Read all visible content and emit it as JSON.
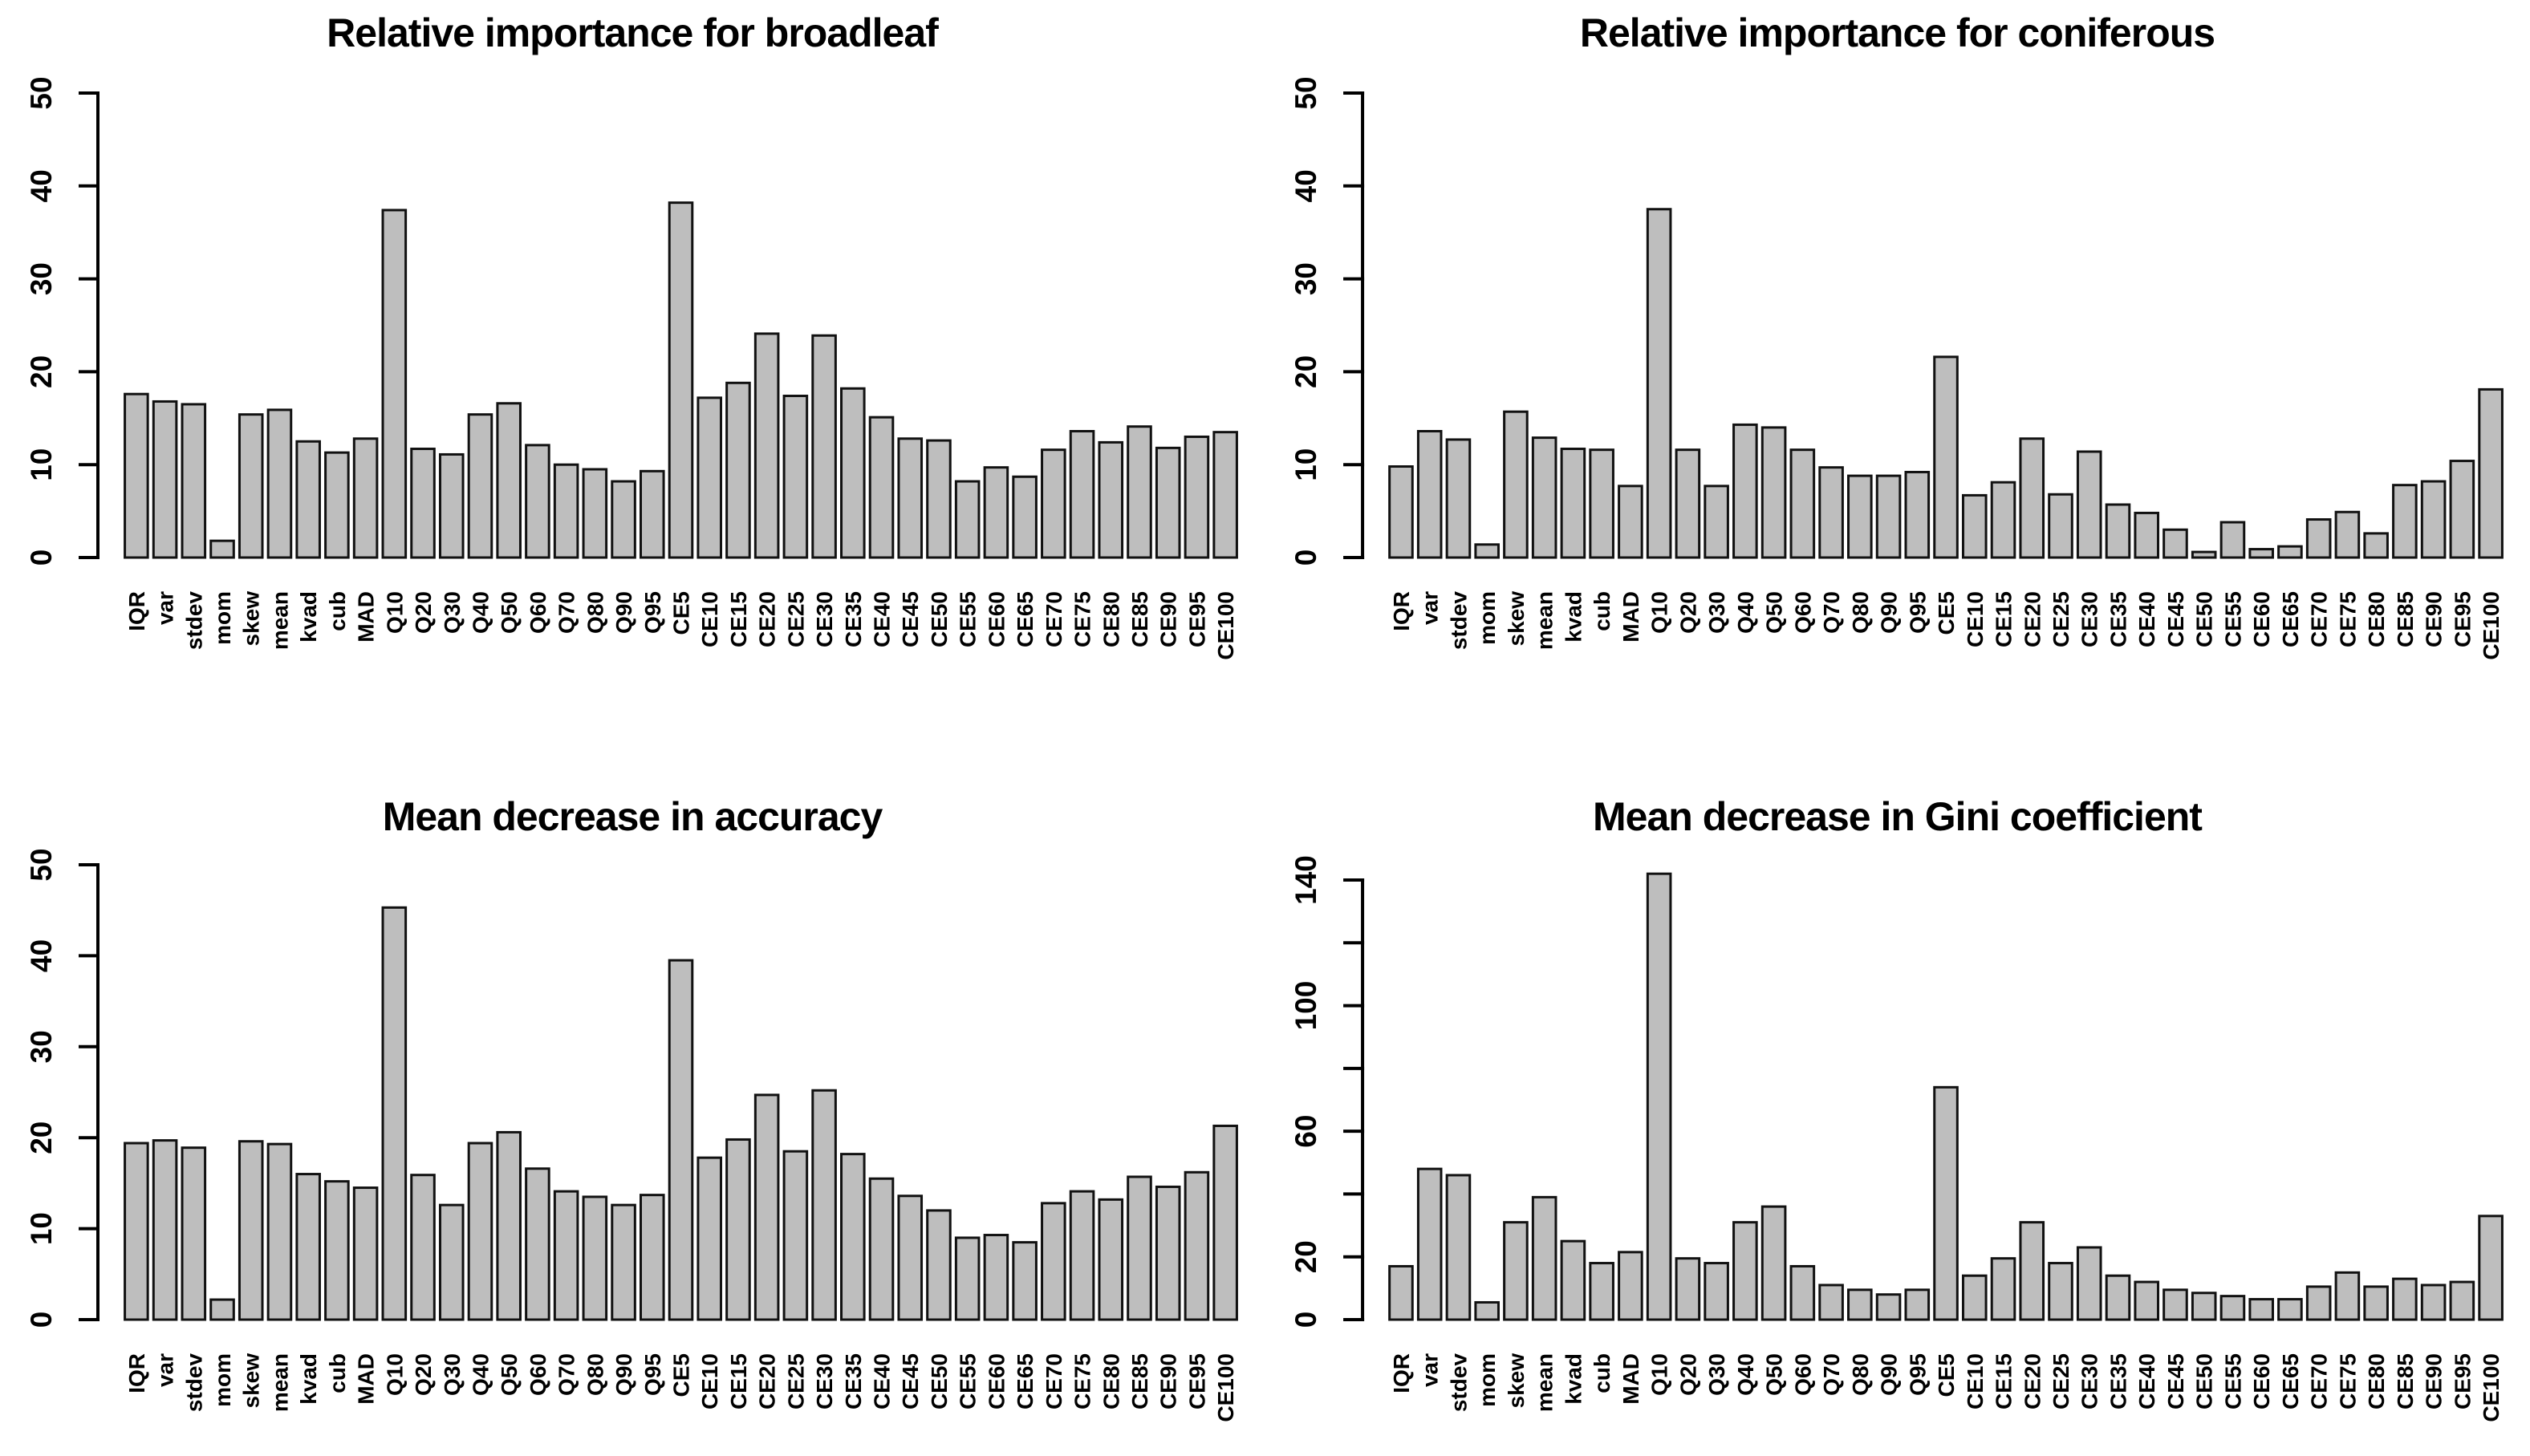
{
  "figure": {
    "background": "#ffffff",
    "text_color": "#000000",
    "bar_fill": "#bebebe",
    "bar_border": "#111111"
  },
  "chart_data": [
    {
      "type": "bar",
      "title": "Relative importance for broadleaf",
      "xlabel": "",
      "ylabel": "",
      "ylim": [
        0,
        50
      ],
      "yticks": [
        0,
        10,
        20,
        30,
        40,
        50
      ],
      "ytick_labels": [
        "0",
        "10",
        "20",
        "30",
        "40",
        "50"
      ],
      "grid": false,
      "legend": "none",
      "bar_color": "#bebebe",
      "categories": [
        "IQR",
        "var",
        "stdev",
        "mom",
        "skew",
        "mean",
        "kvad",
        "cub",
        "MAD",
        "Q10",
        "Q20",
        "Q30",
        "Q40",
        "Q50",
        "Q60",
        "Q70",
        "Q80",
        "Q90",
        "Q95",
        "CE5",
        "CE10",
        "CE15",
        "CE20",
        "CE25",
        "CE30",
        "CE35",
        "CE40",
        "CE45",
        "CE50",
        "CE55",
        "CE60",
        "CE65",
        "CE70",
        "CE75",
        "CE80",
        "CE85",
        "CE90",
        "CE95",
        "CE100"
      ],
      "values": [
        17.6,
        16.8,
        16.5,
        1.8,
        15.4,
        15.9,
        12.5,
        11.3,
        12.8,
        37.4,
        11.7,
        11.1,
        15.4,
        16.6,
        12.1,
        10.0,
        9.5,
        8.2,
        9.3,
        38.2,
        17.2,
        18.8,
        24.1,
        17.4,
        23.9,
        18.2,
        15.1,
        12.8,
        12.6,
        8.2,
        9.7,
        8.7,
        11.6,
        13.6,
        12.4,
        14.1,
        11.8,
        13.0,
        13.5
      ]
    },
    {
      "type": "bar",
      "title": "Relative importance for coniferous",
      "xlabel": "",
      "ylabel": "",
      "ylim": [
        0,
        50
      ],
      "yticks": [
        0,
        10,
        20,
        30,
        40,
        50
      ],
      "ytick_labels": [
        "0",
        "10",
        "20",
        "30",
        "40",
        "50"
      ],
      "grid": false,
      "legend": "none",
      "bar_color": "#bebebe",
      "categories": [
        "IQR",
        "var",
        "stdev",
        "mom",
        "skew",
        "mean",
        "kvad",
        "cub",
        "MAD",
        "Q10",
        "Q20",
        "Q30",
        "Q40",
        "Q50",
        "Q60",
        "Q70",
        "Q80",
        "Q90",
        "Q95",
        "CE5",
        "CE10",
        "CE15",
        "CE20",
        "CE25",
        "CE30",
        "CE35",
        "CE40",
        "CE45",
        "CE50",
        "CE55",
        "CE60",
        "CE65",
        "CE70",
        "CE75",
        "CE80",
        "CE85",
        "CE90",
        "CE95",
        "CE100"
      ],
      "values": [
        9.8,
        13.6,
        12.7,
        1.4,
        15.7,
        12.9,
        11.7,
        11.6,
        7.7,
        37.5,
        11.6,
        7.7,
        14.3,
        14.0,
        11.6,
        9.7,
        8.8,
        8.8,
        9.2,
        21.6,
        6.7,
        8.1,
        12.8,
        6.8,
        11.4,
        5.7,
        4.8,
        3.0,
        0.6,
        3.8,
        0.9,
        1.2,
        4.1,
        4.9,
        2.6,
        7.8,
        8.2,
        10.4,
        18.1
      ]
    },
    {
      "type": "bar",
      "title": "Mean decrease in accuracy",
      "xlabel": "",
      "ylabel": "",
      "ylim": [
        0,
        50
      ],
      "yticks": [
        0,
        10,
        20,
        30,
        40,
        50
      ],
      "ytick_labels": [
        "0",
        "10",
        "20",
        "30",
        "40",
        "50"
      ],
      "grid": false,
      "legend": "none",
      "bar_color": "#bebebe",
      "categories": [
        "IQR",
        "var",
        "stdev",
        "mom",
        "skew",
        "mean",
        "kvad",
        "cub",
        "MAD",
        "Q10",
        "Q20",
        "Q30",
        "Q40",
        "Q50",
        "Q60",
        "Q70",
        "Q80",
        "Q90",
        "Q95",
        "CE5",
        "CE10",
        "CE15",
        "CE20",
        "CE25",
        "CE30",
        "CE35",
        "CE40",
        "CE45",
        "CE50",
        "CE55",
        "CE60",
        "CE65",
        "CE70",
        "CE75",
        "CE80",
        "CE85",
        "CE90",
        "CE95",
        "CE100"
      ],
      "values": [
        19.4,
        19.7,
        18.9,
        2.2,
        19.6,
        19.3,
        16.0,
        15.2,
        14.5,
        45.3,
        15.9,
        12.6,
        19.4,
        20.6,
        16.6,
        14.1,
        13.5,
        12.6,
        13.7,
        39.5,
        17.8,
        19.8,
        24.7,
        18.5,
        25.2,
        18.2,
        15.5,
        13.6,
        12.0,
        9.0,
        9.3,
        8.5,
        12.8,
        14.1,
        13.2,
        15.7,
        14.6,
        16.2,
        21.3
      ]
    },
    {
      "type": "bar",
      "title": "Mean decrease in Gini coefficient",
      "xlabel": "",
      "ylabel": "",
      "ylim": [
        0,
        140
      ],
      "yticks": [
        0,
        20,
        40,
        60,
        80,
        100,
        120,
        140
      ],
      "ytick_labels": [
        "0",
        "20",
        "",
        "60",
        "",
        "100",
        "",
        "140"
      ],
      "grid": false,
      "legend": "none",
      "bar_color": "#bebebe",
      "categories": [
        "IQR",
        "var",
        "stdev",
        "mom",
        "skew",
        "mean",
        "kvad",
        "cub",
        "MAD",
        "Q10",
        "Q20",
        "Q30",
        "Q40",
        "Q50",
        "Q60",
        "Q70",
        "Q80",
        "Q90",
        "Q95",
        "CE5",
        "CE10",
        "CE15",
        "CE20",
        "CE25",
        "CE30",
        "CE35",
        "CE40",
        "CE45",
        "CE50",
        "CE55",
        "CE60",
        "CE65",
        "CE70",
        "CE75",
        "CE80",
        "CE85",
        "CE90",
        "CE95",
        "CE100"
      ],
      "values": [
        17,
        48,
        46,
        5.5,
        31,
        39,
        25,
        18,
        21.5,
        142,
        19.5,
        18,
        31,
        36,
        17,
        11,
        9.5,
        8,
        9.5,
        74,
        14,
        19.5,
        31,
        18,
        23,
        14,
        12,
        9.5,
        8.5,
        7.5,
        6.5,
        6.5,
        10.5,
        15,
        10.5,
        13,
        11,
        12,
        33
      ]
    }
  ]
}
